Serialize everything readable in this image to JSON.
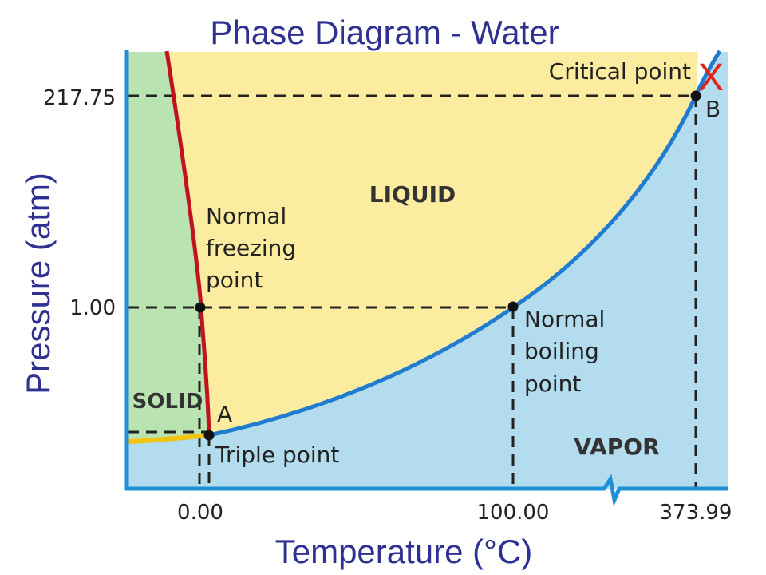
{
  "title": "Phase Diagram - Water",
  "colors": {
    "solid_region": "#b9e3b0",
    "liquid_region": "#fbec9f",
    "vapor_region": "#b3dcef",
    "fusion_curve": "#c1121f",
    "vaporization_curve": "#1f7ccf",
    "sublimation_curve": "#f2c40f",
    "axis": "#1f8fd6",
    "title": "#2e3192",
    "critical_marker": "#e3211b"
  },
  "chart_data": {
    "type": "phase-diagram",
    "title": "Phase Diagram - Water",
    "xlabel": "Temperature (°C)",
    "ylabel": "Pressure (atm)",
    "x_ticks": [
      "0.00",
      "100.00",
      "373.99"
    ],
    "y_ticks": [
      "217.75",
      "1.00"
    ],
    "axis_scale": "not to scale (broken temperature axis)",
    "regions": [
      "SOLID",
      "LIQUID",
      "VAPOR"
    ],
    "points": [
      {
        "name": "triple_point",
        "label": "Triple point",
        "letter": "A"
      },
      {
        "name": "normal_freezing_point",
        "label": "Normal freezing point",
        "temperature": 0.0,
        "pressure": 1.0
      },
      {
        "name": "normal_boiling_point",
        "label": "Normal boiling point",
        "temperature": 100.0,
        "pressure": 1.0
      },
      {
        "name": "critical_point",
        "label": "Critical point",
        "letter": "B",
        "marker": "X",
        "temperature": 373.99,
        "pressure": 217.75
      }
    ],
    "curves": [
      "fusion",
      "vaporization",
      "sublimation"
    ]
  }
}
